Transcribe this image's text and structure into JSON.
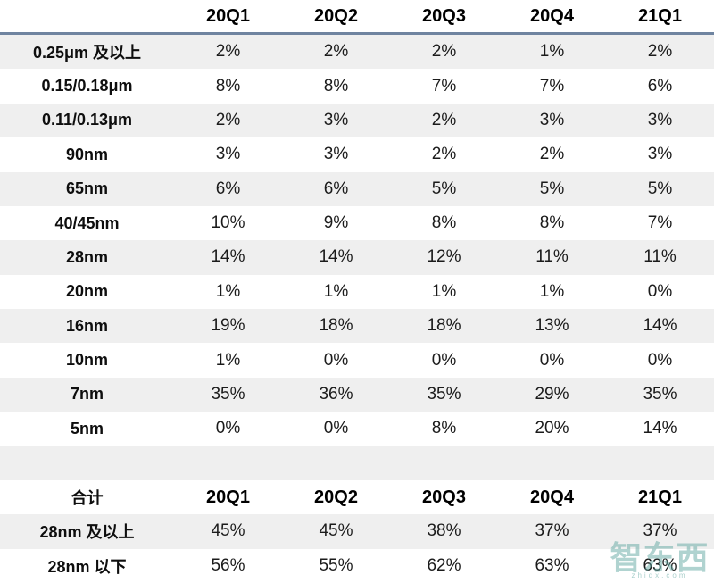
{
  "colors": {
    "zebra_stripe": "#efefef",
    "header_rule": "#6f84a0",
    "text": "#1b1b1b",
    "watermark": "#63a8a2"
  },
  "watermark": {
    "text": "智东西",
    "subtext": "zhidx.com"
  },
  "chart_data": [
    {
      "type": "table",
      "title": "",
      "columns": [
        "",
        "20Q1",
        "20Q2",
        "20Q3",
        "20Q4",
        "21Q1"
      ],
      "rows": [
        [
          "0.25μm 及以上",
          "2%",
          "2%",
          "2%",
          "1%",
          "2%"
        ],
        [
          "0.15/0.18μm",
          "8%",
          "8%",
          "7%",
          "7%",
          "6%"
        ],
        [
          "0.11/0.13μm",
          "2%",
          "3%",
          "2%",
          "3%",
          "3%"
        ],
        [
          "90nm",
          "3%",
          "3%",
          "2%",
          "2%",
          "3%"
        ],
        [
          "65nm",
          "6%",
          "6%",
          "5%",
          "5%",
          "5%"
        ],
        [
          "40/45nm",
          "10%",
          "9%",
          "8%",
          "8%",
          "7%"
        ],
        [
          "28nm",
          "14%",
          "14%",
          "12%",
          "11%",
          "11%"
        ],
        [
          "20nm",
          "1%",
          "1%",
          "1%",
          "1%",
          "0%"
        ],
        [
          "16nm",
          "19%",
          "18%",
          "18%",
          "13%",
          "14%"
        ],
        [
          "10nm",
          "1%",
          "0%",
          "0%",
          "0%",
          "0%"
        ],
        [
          "7nm",
          "35%",
          "36%",
          "35%",
          "29%",
          "35%"
        ],
        [
          "5nm",
          "0%",
          "0%",
          "8%",
          "20%",
          "14%"
        ]
      ]
    },
    {
      "type": "table",
      "title": "合计",
      "columns": [
        "合计",
        "20Q1",
        "20Q2",
        "20Q3",
        "20Q4",
        "21Q1"
      ],
      "rows": [
        [
          "28nm 及以上",
          "45%",
          "45%",
          "38%",
          "37%",
          "37%"
        ],
        [
          "28nm 以下",
          "56%",
          "55%",
          "62%",
          "63%",
          "63%"
        ]
      ]
    }
  ]
}
